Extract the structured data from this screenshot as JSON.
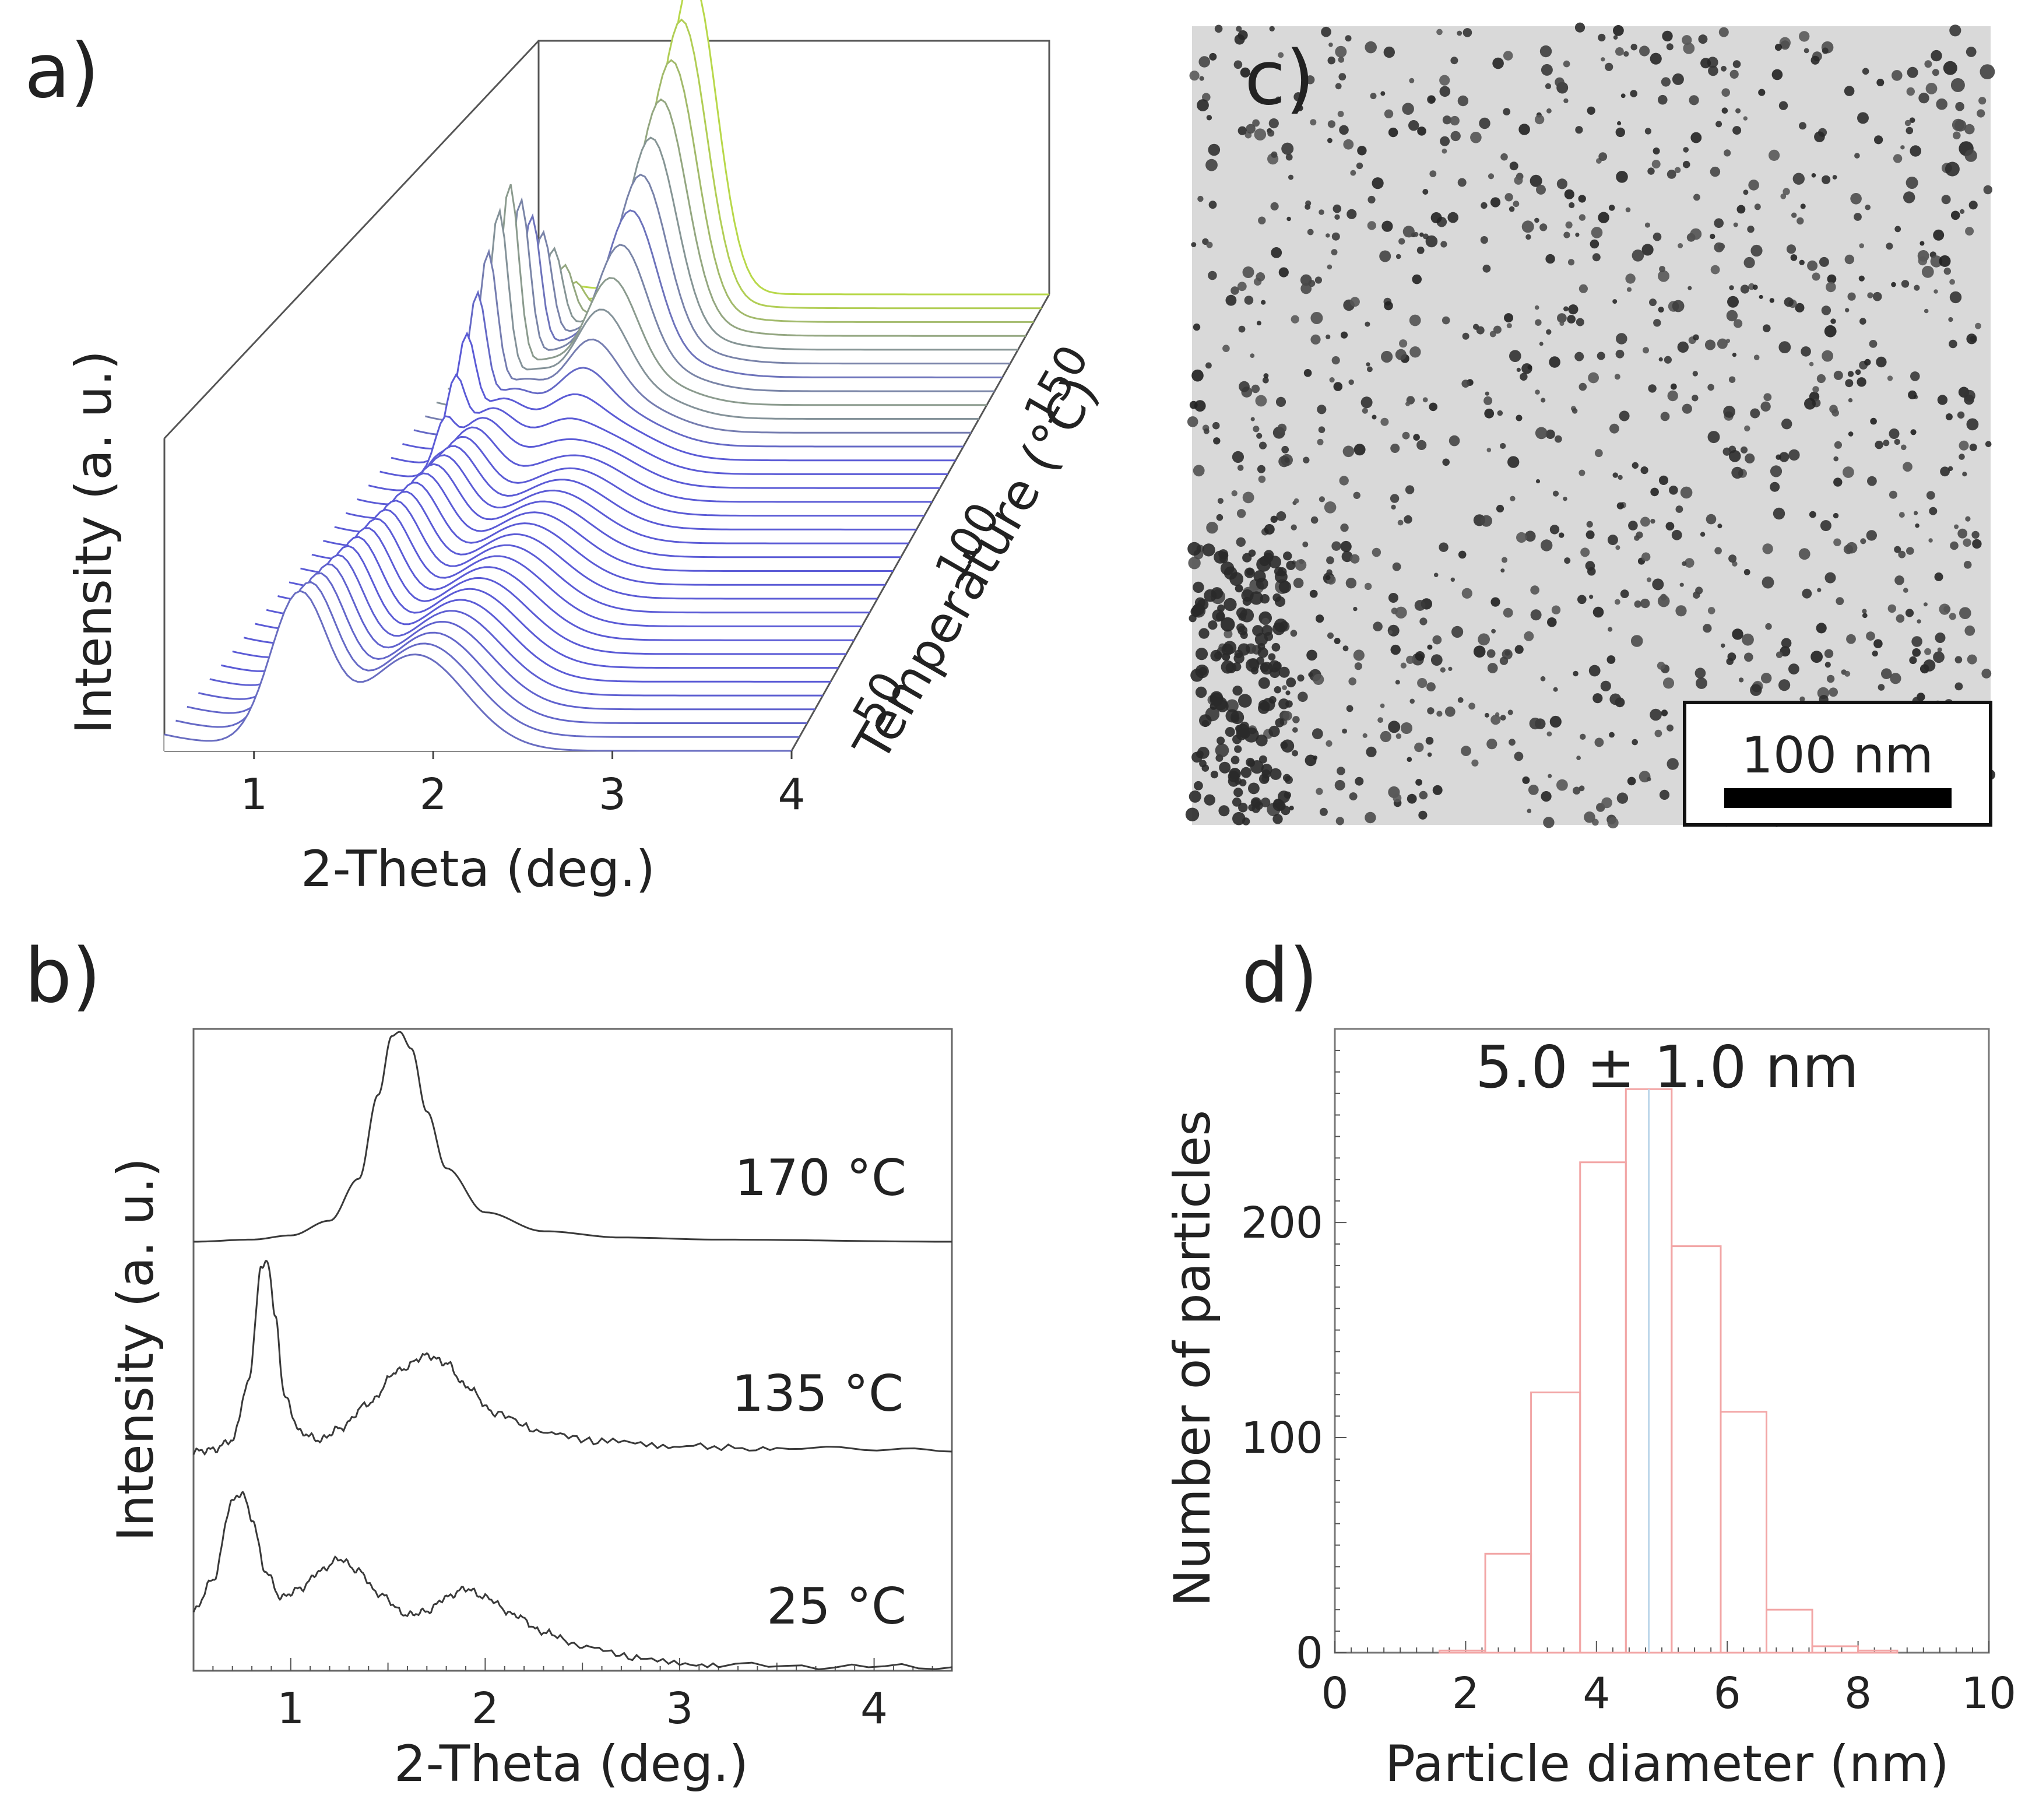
{
  "figure": {
    "panel_labels": [
      "a)",
      "b)",
      "c)",
      "d)"
    ]
  },
  "colors": {
    "trace_low": "#5b5bd6",
    "trace_high": "#b8d84a",
    "hist_main": "#f2a6a6",
    "hist_accent": "#bcd6ea",
    "axis": "#444444"
  },
  "chart_data": [
    {
      "id": "a",
      "type": "line",
      "subtype": "waterfall-3d",
      "xlabel": "2-Theta (deg.)",
      "ylabel": "Intensity (a. u.)",
      "zlabel": "Temperature (°C)",
      "x_ticks": [
        1,
        2,
        3,
        4
      ],
      "z_ticks": [
        50,
        100,
        150
      ],
      "xlim": [
        0.5,
        4.0
      ],
      "zlim": [
        25,
        170
      ],
      "trace_count": 34,
      "series": [
        {
          "name": "25 °C",
          "peaks_2theta": [
            1.25,
            1.85
          ]
        },
        {
          "name": "135 °C",
          "peaks_2theta": [
            0.88,
            1.7
          ]
        },
        {
          "name": "170 °C",
          "peaks_2theta": [
            1.55
          ]
        }
      ]
    },
    {
      "id": "b",
      "type": "line",
      "xlabel": "2-Theta (deg.)",
      "ylabel": "Intensity (a. u.)",
      "x_ticks": [
        1,
        2,
        3,
        4
      ],
      "xlim": [
        0.5,
        4.4
      ],
      "series": [
        {
          "name": "170 °C",
          "label_text": "170 °C",
          "x": [
            0.5,
            0.8,
            1.0,
            1.2,
            1.35,
            1.45,
            1.52,
            1.56,
            1.62,
            1.7,
            1.8,
            2.0,
            2.3,
            2.7,
            3.2,
            4.4
          ],
          "y": [
            0.0,
            0.01,
            0.03,
            0.1,
            0.3,
            0.7,
            0.98,
            1.0,
            0.92,
            0.62,
            0.35,
            0.14,
            0.05,
            0.02,
            0.01,
            0.0
          ]
        },
        {
          "name": "135 °C",
          "label_text": "135 °C",
          "x": [
            0.5,
            0.6,
            0.7,
            0.78,
            0.85,
            0.88,
            0.92,
            0.97,
            1.05,
            1.15,
            1.25,
            1.4,
            1.55,
            1.7,
            1.8,
            1.9,
            2.05,
            2.3,
            2.6,
            3.0,
            3.5,
            4.4
          ],
          "y": [
            0.0,
            0.01,
            0.06,
            0.35,
            0.95,
            1.0,
            0.7,
            0.28,
            0.1,
            0.06,
            0.12,
            0.25,
            0.42,
            0.5,
            0.46,
            0.34,
            0.2,
            0.1,
            0.05,
            0.03,
            0.01,
            0.0
          ]
        },
        {
          "name": "25 °C",
          "label_text": "25 °C",
          "x": [
            0.5,
            0.6,
            0.7,
            0.75,
            0.8,
            0.87,
            0.95,
            1.05,
            1.15,
            1.25,
            1.35,
            1.45,
            1.6,
            1.7,
            1.8,
            1.9,
            2.0,
            2.15,
            2.3,
            2.5,
            2.8,
            3.2,
            4.4
          ],
          "y": [
            0.32,
            0.5,
            0.95,
            1.0,
            0.85,
            0.55,
            0.4,
            0.45,
            0.55,
            0.62,
            0.55,
            0.42,
            0.3,
            0.32,
            0.4,
            0.45,
            0.4,
            0.3,
            0.2,
            0.12,
            0.05,
            0.01,
            0.0
          ]
        }
      ]
    },
    {
      "id": "c",
      "type": "image",
      "description_visible": "TEM micrograph",
      "scale_bar_label": "100 nm"
    },
    {
      "id": "d",
      "type": "bar",
      "subtype": "histogram",
      "annotation": "5.0 ± 1.0 nm",
      "xlabel": "Particle diameter (nm)",
      "ylabel": "Number of particles",
      "xlim": [
        0,
        10
      ],
      "ylim": [
        0,
        290
      ],
      "x_ticks": [
        0,
        2,
        4,
        6,
        8,
        10
      ],
      "y_ticks": [
        0,
        100,
        200
      ],
      "bins": [
        {
          "x0": 1.6,
          "x1": 2.3,
          "count": 1
        },
        {
          "x0": 2.3,
          "x1": 3.0,
          "count": 46
        },
        {
          "x0": 3.0,
          "x1": 3.75,
          "count": 121
        },
        {
          "x0": 3.75,
          "x1": 4.45,
          "count": 228
        },
        {
          "x0": 4.45,
          "x1": 5.15,
          "count": 262
        },
        {
          "x0": 5.15,
          "x1": 5.9,
          "count": 189
        },
        {
          "x0": 5.9,
          "x1": 6.6,
          "count": 112
        },
        {
          "x0": 6.6,
          "x1": 7.3,
          "count": 20
        },
        {
          "x0": 7.3,
          "x1": 8.0,
          "count": 3
        },
        {
          "x0": 8.0,
          "x1": 8.6,
          "count": 1
        }
      ]
    }
  ]
}
